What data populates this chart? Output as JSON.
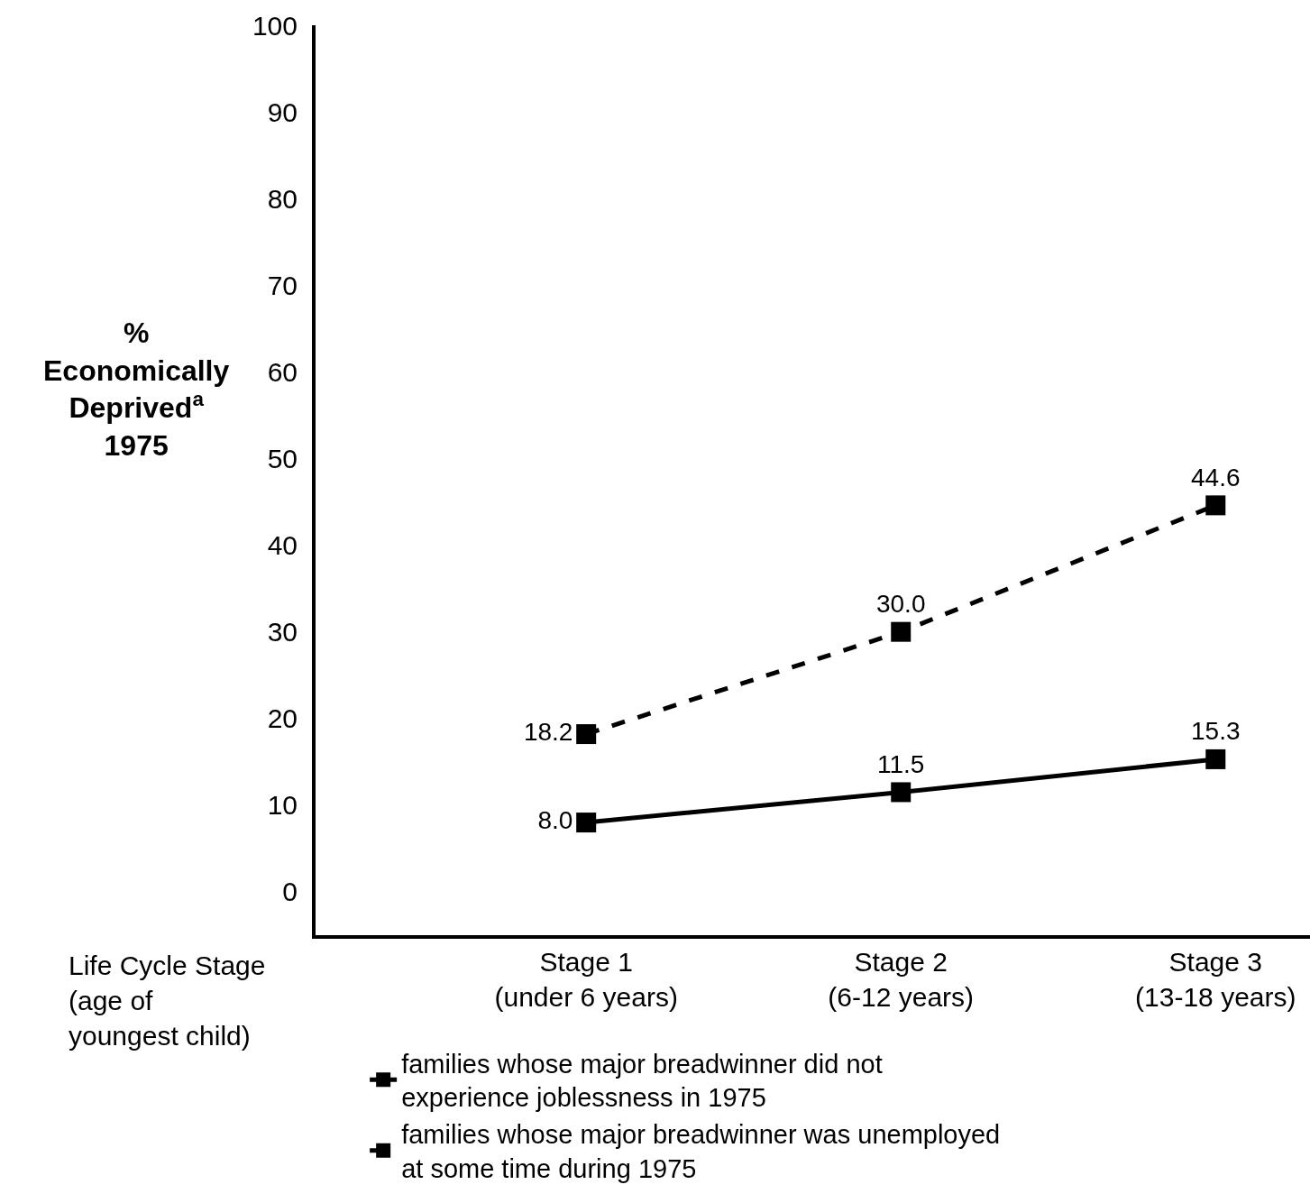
{
  "chart_data": {
    "type": "line",
    "xlabel": "Life Cycle Stage\n(age of\nyoungest child)",
    "ylabel": "%\nEconomically\nDeprived$^{a}$\n1975",
    "categories": [
      "Stage 1\n(under 6 years)",
      "Stage 2\n(6-12 years)",
      "Stage 3\n(13-18 years)"
    ],
    "series": [
      {
        "name": "families whose major breadwinner did not\nexperience joblessness in 1975",
        "color": "#000000",
        "values": [
          8.0,
          11.5,
          15.3
        ],
        "value_labels": [
          "8.0",
          "11.5",
          "15.3"
        ],
        "line_style": "solid"
      },
      {
        "name": "families whose major breadwinner was unemployed\nat some time during 1975",
        "color": "#000000",
        "values": [
          18.2,
          30.0,
          44.6
        ],
        "value_labels": [
          "18.2",
          "30.0",
          "44.6"
        ],
        "line_style": "dashed"
      }
    ],
    "ylim": [
      -5,
      100
    ],
    "yticks": [
      0,
      10,
      20,
      30,
      40,
      50,
      60,
      70,
      80,
      90,
      100
    ],
    "legend": "bottom",
    "marker": "square"
  }
}
